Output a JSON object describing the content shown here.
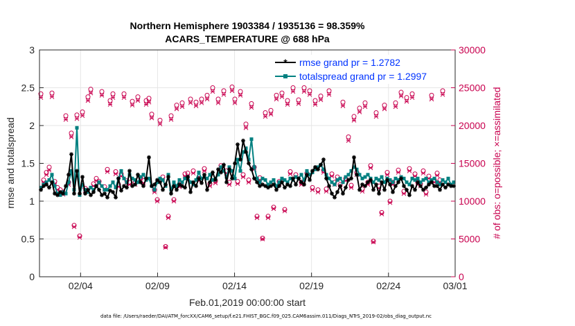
{
  "chart_data": {
    "type": "line",
    "title_line1": "Northern Hemisphere 1903384 / 1935136 = 98.359%",
    "title_line2": "ACARS_TEMPERATURE @ 688 hPa",
    "xlabel": "Feb.01,2019 00:00:00 start",
    "ylabel_left": "rmse and totalspread",
    "ylabel_right": "# of obs: o=possible; ×=assimilated",
    "footer": "data file: /Users/raeder/DAI/ATM_forcXX/CAM6_setup/f.e21.FHIST_BGC.f09_025.CAM6assim.011/Diags_NTrS_2019-02/obs_diag_output.nc",
    "xlim": [
      0,
      27
    ],
    "x_ticks": [
      2.67,
      7.67,
      12.67,
      17.67,
      22.67,
      27.67
    ],
    "x_tick_labels": [
      "02/04",
      "02/09",
      "02/14",
      "02/19",
      "02/24",
      "03/01"
    ],
    "ylim_left": [
      0,
      3
    ],
    "y_ticks_left": [
      "0",
      "0.5",
      "1",
      "1.5",
      "2",
      "2.5",
      "3"
    ],
    "ylim_right": [
      0,
      30000
    ],
    "y_ticks_right": [
      "0",
      "5000",
      "10000",
      "15000",
      "20000",
      "25000",
      "30000"
    ],
    "colors": {
      "rmse": "#000000",
      "spread": "#008080",
      "obs": "#c8004e"
    },
    "legend": {
      "rmse": "rmse grand pr = 1.2782",
      "spread": "totalspread grand pr = 1.2997",
      "position": "top-right"
    },
    "series": [
      {
        "name": "rmse",
        "values": [
          1.15,
          1.2,
          1.22,
          1.18,
          1.25,
          1.1,
          1.08,
          1.12,
          1.1,
          1.2,
          1.35,
          1.62,
          1.1,
          1.4,
          1.1,
          1.32,
          1.1,
          1.15,
          1.08,
          1.12,
          1.2,
          1.15,
          1.08,
          1.1,
          1.05,
          1.14,
          1.12,
          1.05,
          1.3,
          1.14,
          1.2,
          1.18,
          1.4,
          1.2,
          1.22,
          1.35,
          1.25,
          1.2,
          1.3,
          1.58,
          1.2,
          1.22,
          1.28,
          1.25,
          1.15,
          1.22,
          1.32,
          1.1,
          1.2,
          1.15,
          1.22,
          1.2,
          1.18,
          1.32,
          1.12,
          1.25,
          1.2,
          1.3,
          1.24,
          1.35,
          1.15,
          1.25,
          1.38,
          1.28,
          1.42,
          1.38,
          1.48,
          1.25,
          1.42,
          1.3,
          1.5,
          1.75,
          1.55,
          1.8,
          1.65,
          1.5,
          1.42,
          1.3,
          1.25,
          1.2,
          1.22,
          1.2,
          1.18,
          1.2,
          1.22,
          1.15,
          1.2,
          1.25,
          1.18,
          1.22,
          1.2,
          1.3,
          1.22,
          1.3,
          1.25,
          1.22,
          1.35,
          1.28,
          1.4,
          1.45,
          1.42,
          1.48,
          1.55,
          1.3,
          1.2,
          1.1,
          1.05,
          1.12,
          1.2,
          1.1,
          1.18,
          1.28,
          1.3,
          1.58,
          1.35,
          1.15,
          1.22,
          1.2,
          1.25,
          1.28,
          1.15,
          1.22,
          1.1,
          1.25,
          1.15,
          1.28,
          1.22,
          1.12,
          1.2,
          1.25,
          1.3,
          1.2,
          1.15,
          1.08,
          1.2,
          1.15,
          1.25,
          1.2,
          1.15,
          1.18,
          1.22,
          1.25,
          1.2,
          1.2,
          1.15,
          1.22,
          1.18,
          1.22,
          1.2,
          1.2
        ]
      },
      {
        "name": "totalspread",
        "values": [
          1.18,
          1.22,
          1.25,
          1.28,
          1.35,
          1.2,
          1.1,
          1.08,
          1.12,
          1.1,
          1.25,
          1.4,
          1.15,
          1.97,
          1.08,
          1.22,
          1.15,
          1.12,
          1.18,
          1.15,
          1.2,
          1.25,
          1.2,
          1.15,
          1.15,
          1.2,
          1.25,
          1.18,
          1.3,
          1.4,
          1.3,
          1.25,
          1.35,
          1.3,
          1.28,
          1.25,
          1.32,
          1.35,
          1.28,
          1.3,
          1.2,
          1.15,
          1.25,
          1.3,
          1.28,
          1.2,
          1.35,
          1.15,
          1.25,
          1.2,
          1.28,
          1.25,
          1.3,
          1.32,
          1.25,
          1.22,
          1.28,
          1.38,
          1.3,
          1.32,
          1.3,
          1.35,
          1.28,
          1.3,
          1.35,
          1.45,
          1.4,
          1.32,
          1.45,
          1.4,
          1.3,
          1.55,
          1.4,
          1.65,
          1.7,
          1.55,
          1.82,
          1.45,
          1.3,
          1.25,
          1.3,
          1.28,
          1.22,
          1.25,
          1.28,
          1.2,
          1.25,
          1.3,
          1.28,
          1.25,
          1.3,
          1.28,
          1.32,
          1.3,
          1.35,
          1.28,
          1.4,
          1.35,
          1.38,
          1.42,
          1.45,
          1.48,
          1.42,
          1.35,
          1.3,
          1.25,
          1.22,
          1.28,
          1.3,
          1.25,
          1.32,
          1.35,
          1.4,
          1.45,
          1.42,
          1.35,
          1.3,
          1.32,
          1.35,
          1.3,
          1.25,
          1.3,
          1.28,
          1.32,
          1.25,
          1.3,
          1.28,
          1.25,
          1.3,
          1.28,
          1.32,
          1.3,
          1.25,
          1.22,
          1.3,
          1.28,
          1.3,
          1.25,
          1.28,
          1.3,
          1.25,
          1.28,
          1.3,
          1.25,
          1.22,
          1.28,
          1.25,
          1.3,
          1.22,
          1.25
        ]
      },
      {
        "name": "obs_possible",
        "values": [
          24200,
          12800,
          13800,
          14500,
          24300,
          12600,
          11800,
          11500,
          11200,
          21300,
          12500,
          19000,
          6800,
          21400,
          5400,
          21800,
          11700,
          23800,
          24800,
          12300,
          13000,
          12600,
          24500,
          11900,
          14200,
          23300,
          24200,
          13900,
          12200,
          13600,
          24200,
          12700,
          12500,
          23200,
          12500,
          23800,
          13100,
          12700,
          23300,
          23600,
          21500,
          11500,
          10200,
          20700,
          13200,
          4000,
          8000,
          21300,
          10200,
          22700,
          12200,
          23000,
          13600,
          13700,
          23500,
          14000,
          23100,
          13000,
          23500,
          14300,
          24000,
          12300,
          25000,
          12700,
          23500,
          14700,
          24600,
          14000,
          12500,
          25100,
          23500,
          12600,
          24500,
          13500,
          20200,
          12800,
          22900,
          14500,
          8000,
          13100,
          5100,
          21700,
          8000,
          22000,
          9200,
          24000,
          12600,
          24300,
          8900,
          23300,
          13900,
          25000,
          13500,
          23400,
          12500,
          25000,
          13700,
          24600,
          11800,
          23300,
          11500,
          23900,
          14100,
          11600,
          24600,
          13600,
          12500,
          13200,
          12200,
          23100,
          13000,
          18500,
          12100,
          21200,
          13800,
          22300,
          11600,
          23000,
          12500,
          14700,
          4700,
          21700,
          12000,
          8500,
          22700,
          13800,
          10000,
          12500,
          23000,
          14100,
          24400,
          11300,
          23700,
          14300,
          24200,
          13600,
          12500,
          12300,
          14000,
          11200,
          13300,
          24000,
          12800,
          13700,
          12800,
          24600
        ]
      },
      {
        "name": "obs_assimilated",
        "values": [
          23700,
          12500,
          13500,
          14100,
          23800,
          12300,
          11500,
          11200,
          10900,
          20800,
          12200,
          18500,
          6600,
          20900,
          5200,
          21300,
          11400,
          23300,
          24300,
          12000,
          12700,
          12300,
          24000,
          11600,
          13900,
          22800,
          23700,
          13600,
          11900,
          13300,
          23700,
          12400,
          12200,
          22700,
          12200,
          23300,
          12800,
          12400,
          22800,
          23100,
          21000,
          11200,
          10000,
          20200,
          12900,
          3900,
          7800,
          20800,
          10000,
          22200,
          11900,
          22500,
          13300,
          13400,
          23000,
          13700,
          22600,
          12700,
          23000,
          14000,
          23500,
          12000,
          24500,
          12400,
          23000,
          14400,
          24100,
          13700,
          12200,
          24600,
          23000,
          12300,
          24000,
          13200,
          19700,
          12500,
          22400,
          14200,
          7800,
          12800,
          5000,
          21200,
          7800,
          21500,
          9000,
          23500,
          12300,
          23800,
          8700,
          22800,
          13600,
          24500,
          13200,
          22900,
          12200,
          24500,
          13400,
          24100,
          11500,
          22800,
          11200,
          23400,
          13800,
          11300,
          24100,
          13300,
          12200,
          12900,
          11900,
          22600,
          12700,
          18000,
          11800,
          20700,
          13500,
          21800,
          11300,
          22500,
          12200,
          14400,
          4600,
          21200,
          11700,
          8300,
          22200,
          13500,
          9800,
          12200,
          22500,
          13800,
          23900,
          11000,
          23200,
          14000,
          23700,
          13300,
          12200,
          12000,
          13700,
          10900,
          13000,
          23500,
          12500,
          13400,
          12500,
          24100
        ]
      }
    ]
  }
}
